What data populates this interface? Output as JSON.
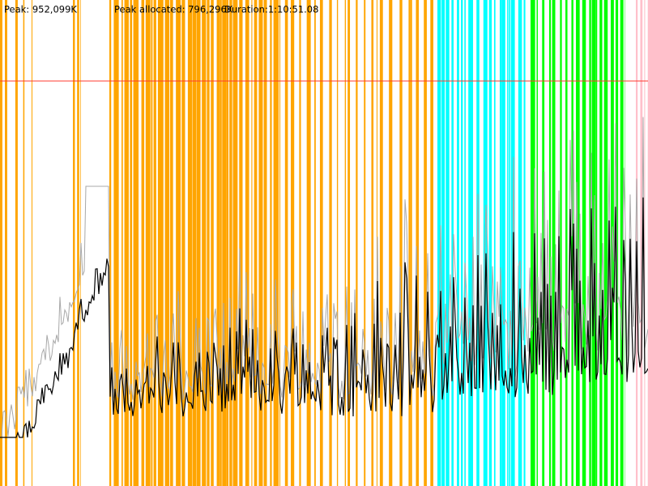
{
  "header": {
    "peak": "Peak: 952,099K",
    "peak_allocated": "Peak allocated: 796,296K",
    "duration": "Duration:1:10:51.08"
  }
}
